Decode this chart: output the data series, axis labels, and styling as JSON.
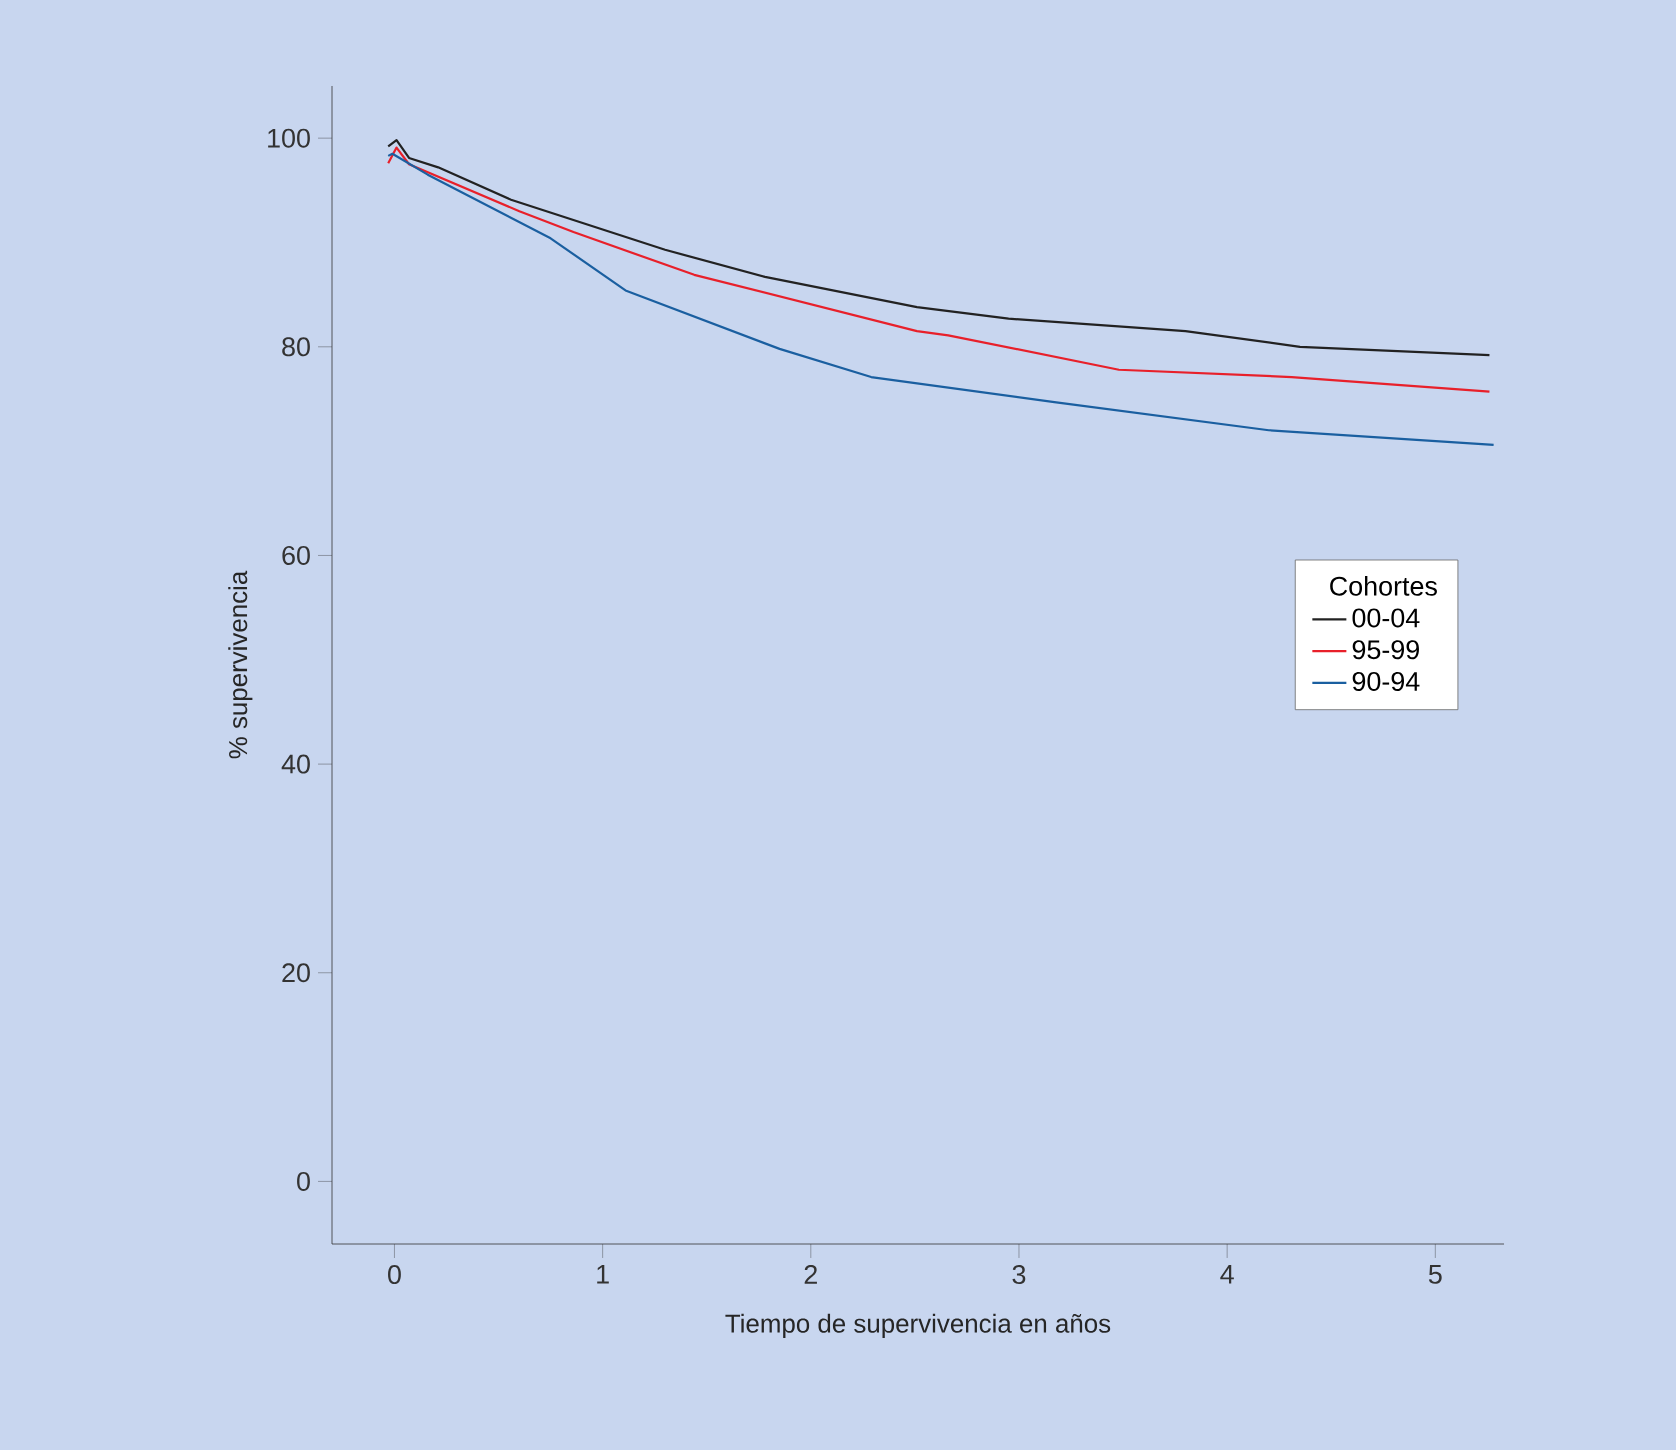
{
  "chart_data": {
    "type": "line",
    "xlabel": "Tiempo de supervivencia en años",
    "ylabel": "% supervivencia",
    "legend_title": "Cohortes",
    "legend": "right",
    "grid": false,
    "marker": "none",
    "line_style": "solid",
    "xlim": [
      -0.3,
      5.33
    ],
    "ylim": [
      -6,
      105
    ],
    "xticks": [
      0,
      1,
      2,
      3,
      4,
      5
    ],
    "yticks": [
      0,
      20,
      40,
      60,
      80,
      100
    ],
    "series": [
      {
        "name": "00-04",
        "color": "#222222",
        "x": [
          -0.03,
          0.01,
          0.07,
          0.21,
          0.56,
          1.3,
          1.78,
          2.51,
          2.95,
          3.8,
          4.35,
          5.26
        ],
        "values": [
          99.2,
          99.8,
          98.1,
          97.2,
          94.1,
          89.3,
          86.7,
          83.8,
          82.7,
          81.5,
          80.0,
          79.2
        ]
      },
      {
        "name": "95-99",
        "color": "#e8202a",
        "x": [
          -0.03,
          0.01,
          0.07,
          0.6,
          0.86,
          1.44,
          2.51,
          2.66,
          3.48,
          4.31,
          5.26
        ],
        "values": [
          97.6,
          99.1,
          97.5,
          93.0,
          91.0,
          86.9,
          81.5,
          81.1,
          77.8,
          77.1,
          75.7
        ]
      },
      {
        "name": "90-94",
        "color": "#1a5fa0",
        "x": [
          -0.03,
          -0.01,
          0.16,
          0.75,
          1.11,
          1.85,
          2.29,
          3.17,
          4.2,
          5.28
        ],
        "values": [
          98.3,
          98.5,
          96.5,
          90.4,
          85.4,
          79.8,
          77.1,
          74.7,
          72.0,
          70.6
        ]
      }
    ]
  }
}
